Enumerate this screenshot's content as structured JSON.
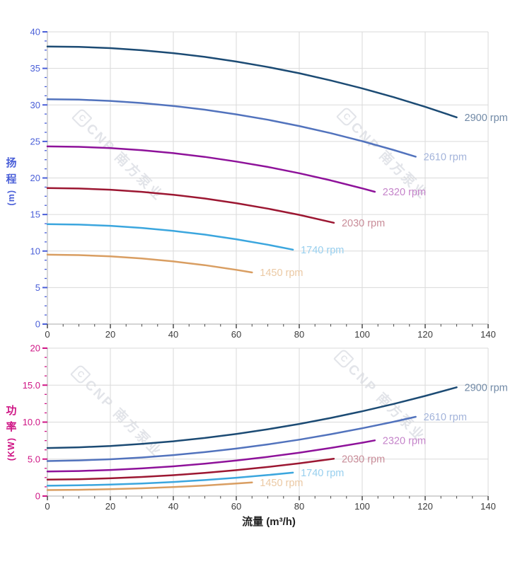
{
  "watermark": {
    "logo_char": "C",
    "text": "CNP 南方泵业",
    "color": "#e2e4e9"
  },
  "layout_colors": {
    "grid": "#dadada",
    "axis_line": "#c6c6c6",
    "x_tick": "#555555",
    "x_tick_label": "#3c3c3c"
  },
  "chart_data": [
    {
      "type": "line",
      "title": "",
      "xlabel": "流量 (m³/h)",
      "ylabel": "扬程(m)",
      "ylabel_chars": "扬程",
      "ylabel_unit": "(m)",
      "axis_color": "#4a5fd8",
      "xlim": [
        0,
        140
      ],
      "ylim": [
        0,
        40
      ],
      "x_major": 20,
      "x_minor": 5,
      "y_major": 5,
      "y_minor": 1.25,
      "x_tick_labels": [
        "0",
        "20",
        "40",
        "60",
        "80",
        "100",
        "120",
        "140"
      ],
      "y_tick_labels": [
        "0",
        "5",
        "10",
        "15",
        "20",
        "25",
        "30",
        "35",
        "40"
      ],
      "grid": true,
      "legend_position": "curve-end",
      "series": [
        {
          "name": "2900 rpm",
          "color": "#1c4b74",
          "label_color": "#7089a6",
          "x": [
            0,
            10,
            20,
            30,
            40,
            50,
            60,
            70,
            80,
            90,
            100,
            110,
            120,
            130
          ],
          "y": [
            38,
            37.94,
            37.77,
            37.48,
            37.08,
            36.57,
            35.93,
            35.19,
            34.33,
            33.35,
            32.26,
            31.06,
            29.74,
            28.3
          ]
        },
        {
          "name": "2610 rpm",
          "color": "#5273bd",
          "label_color": "#a2b3da",
          "x": [
            0,
            10,
            20,
            30,
            40,
            50,
            60,
            70,
            80,
            90,
            100,
            110,
            117
          ],
          "y": [
            30.78,
            30.72,
            30.55,
            30.26,
            29.86,
            29.35,
            28.71,
            27.97,
            27.11,
            26.13,
            25.04,
            23.83,
            22.92
          ]
        },
        {
          "name": "2320 rpm",
          "color": "#8e129a",
          "label_color": "#c584ca",
          "x": [
            0,
            10,
            20,
            30,
            40,
            50,
            60,
            70,
            80,
            90,
            100,
            104
          ],
          "y": [
            24.32,
            24.26,
            24.09,
            23.8,
            23.4,
            22.89,
            22.25,
            21.51,
            20.65,
            19.67,
            18.58,
            18.11
          ]
        },
        {
          "name": "2030 rpm",
          "color": "#9c1732",
          "label_color": "#c98d99",
          "x": [
            0,
            10,
            20,
            30,
            40,
            50,
            60,
            70,
            80,
            91
          ],
          "y": [
            18.62,
            18.56,
            18.39,
            18.1,
            17.7,
            17.19,
            16.55,
            15.81,
            14.95,
            13.87
          ]
        },
        {
          "name": "1740 rpm",
          "color": "#3ba6de",
          "label_color": "#98cfee",
          "x": [
            0,
            10,
            20,
            30,
            40,
            50,
            60,
            70,
            78
          ],
          "y": [
            13.68,
            13.62,
            13.45,
            13.16,
            12.76,
            12.25,
            11.61,
            10.87,
            10.19
          ]
        },
        {
          "name": "1450 rpm",
          "color": "#d99e62",
          "label_color": "#ebc9a4",
          "x": [
            0,
            10,
            20,
            30,
            40,
            50,
            60,
            65
          ],
          "y": [
            9.5,
            9.44,
            9.27,
            8.98,
            8.58,
            8.07,
            7.43,
            7.07
          ]
        }
      ]
    },
    {
      "type": "line",
      "title": "",
      "xlabel": "流量 (m³/h)",
      "ylabel": "功率(KW)",
      "ylabel_chars": "功率",
      "ylabel_unit": "(KW)",
      "axis_color": "#cf1585",
      "xlim": [
        0,
        140
      ],
      "ylim": [
        0,
        20
      ],
      "x_major": 20,
      "x_minor": 5,
      "y_major": 5,
      "y_minor": 1.25,
      "x_tick_labels": [
        "0",
        "20",
        "40",
        "60",
        "80",
        "100",
        "120",
        "140"
      ],
      "y_tick_labels": [
        "0",
        "5.0",
        "10.0",
        "15.0",
        "20"
      ],
      "grid": true,
      "legend_position": "curve-end",
      "series": [
        {
          "name": "2900 rpm",
          "color": "#1c4b74",
          "label_color": "#7089a6",
          "x": [
            0,
            10,
            20,
            30,
            40,
            50,
            60,
            70,
            80,
            90,
            100,
            110,
            120,
            130
          ],
          "y": [
            6.5,
            6.59,
            6.77,
            7.05,
            7.41,
            7.86,
            8.4,
            9.03,
            9.75,
            10.56,
            11.46,
            12.46,
            13.54,
            14.71
          ]
        },
        {
          "name": "2610 rpm",
          "color": "#5273bd",
          "label_color": "#a2b3da",
          "x": [
            0,
            10,
            20,
            30,
            40,
            50,
            60,
            70,
            80,
            90,
            100,
            110,
            117
          ],
          "y": [
            4.74,
            4.82,
            4.98,
            5.22,
            5.54,
            5.94,
            6.42,
            6.99,
            7.63,
            8.36,
            9.17,
            10.05,
            10.72
          ]
        },
        {
          "name": "2320 rpm",
          "color": "#8e129a",
          "label_color": "#c584ca",
          "x": [
            0,
            10,
            20,
            30,
            40,
            50,
            60,
            70,
            80,
            90,
            100,
            104
          ],
          "y": [
            3.33,
            3.39,
            3.53,
            3.74,
            4.02,
            4.38,
            4.8,
            5.3,
            5.87,
            6.51,
            7.22,
            7.53
          ]
        },
        {
          "name": "2030 rpm",
          "color": "#9c1732",
          "label_color": "#c98d99",
          "x": [
            0,
            10,
            20,
            30,
            40,
            50,
            60,
            70,
            80,
            91
          ],
          "y": [
            2.23,
            2.28,
            2.4,
            2.58,
            2.82,
            3.13,
            3.5,
            3.93,
            4.43,
            5.04
          ]
        },
        {
          "name": "1740 rpm",
          "color": "#3ba6de",
          "label_color": "#98cfee",
          "x": [
            0,
            10,
            20,
            30,
            40,
            50,
            60,
            70,
            78
          ],
          "y": [
            1.4,
            1.45,
            1.55,
            1.7,
            1.9,
            2.16,
            2.48,
            2.84,
            3.17
          ]
        },
        {
          "name": "1450 rpm",
          "color": "#d99e62",
          "label_color": "#ebc9a4",
          "x": [
            0,
            10,
            20,
            30,
            40,
            50,
            60,
            65
          ],
          "y": [
            0.81,
            0.85,
            0.93,
            1.05,
            1.22,
            1.43,
            1.69,
            1.84
          ]
        }
      ]
    }
  ]
}
